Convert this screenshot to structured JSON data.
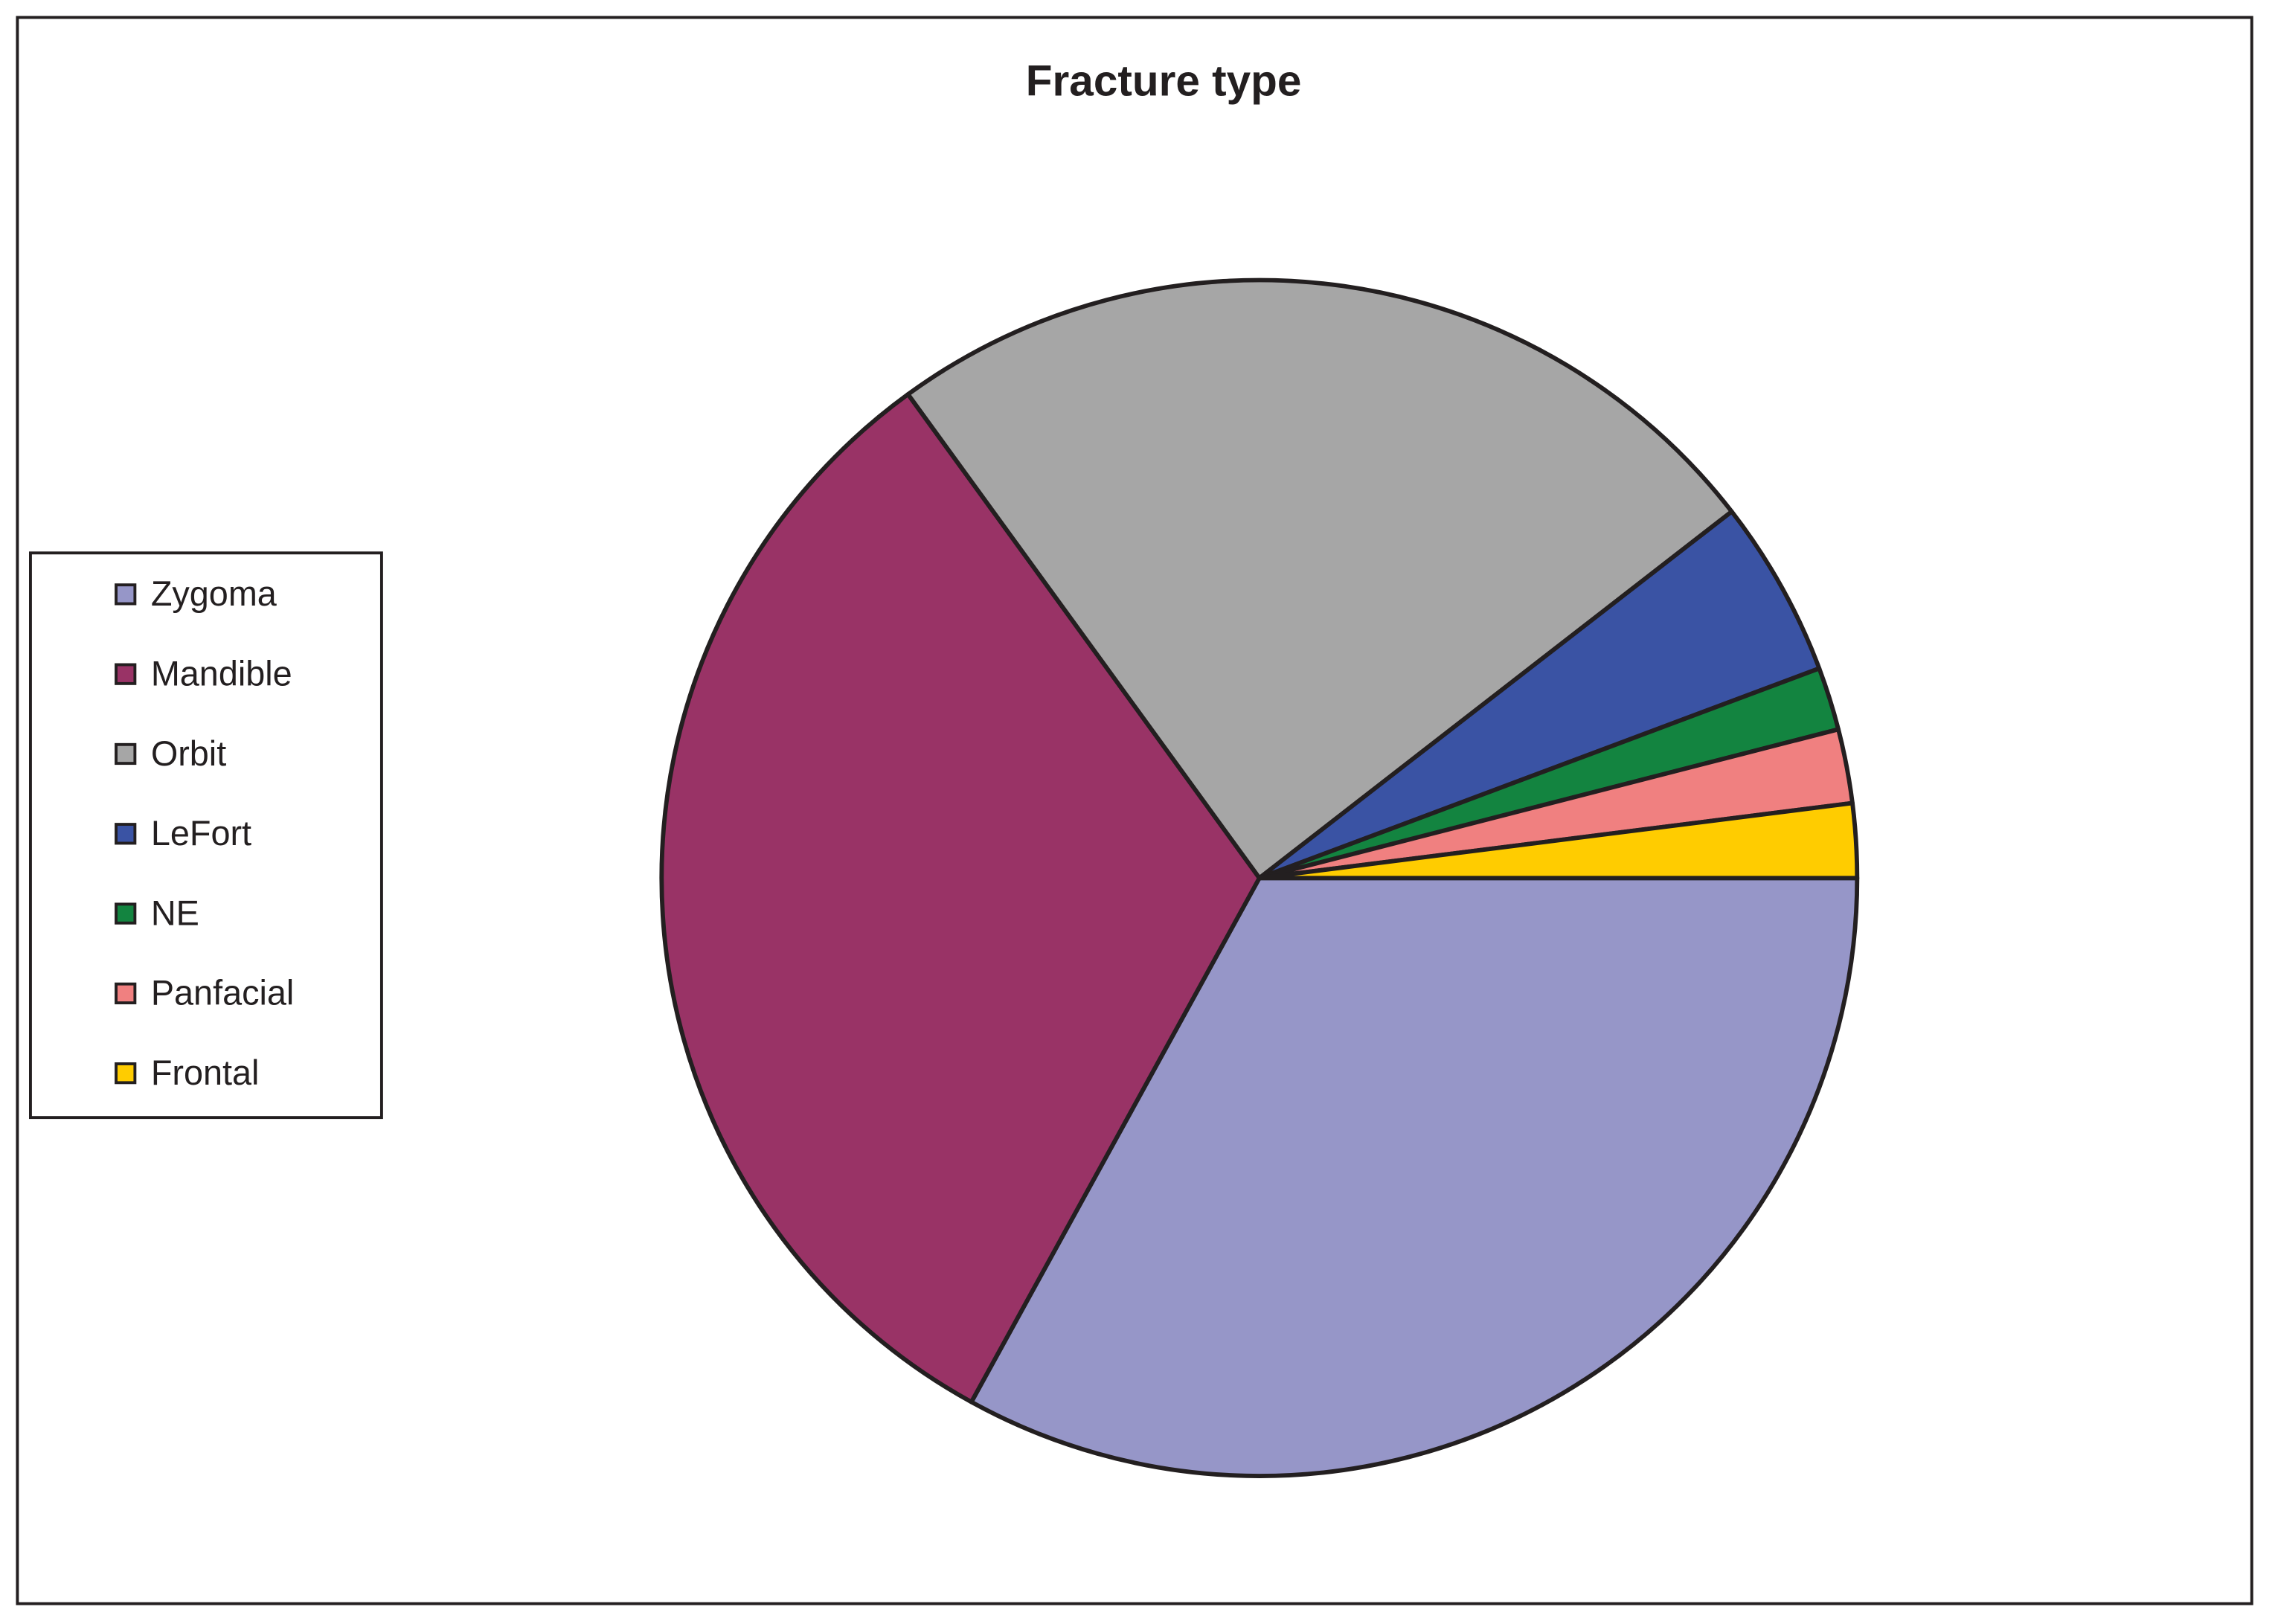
{
  "chart_data": {
    "type": "pie",
    "title": "Fracture type",
    "categories": [
      "Zygoma",
      "Mandible",
      "Orbit",
      "LeFort",
      "NE",
      "Panfacial",
      "Frontal"
    ],
    "values": [
      33,
      32,
      24.5,
      4.8,
      1.7,
      2,
      2
    ],
    "colors": [
      "#9696c8",
      "#993366",
      "#a6a6a6",
      "#3a53a4",
      "#138440",
      "#f08080",
      "#ffcc00"
    ],
    "legend": "left"
  }
}
